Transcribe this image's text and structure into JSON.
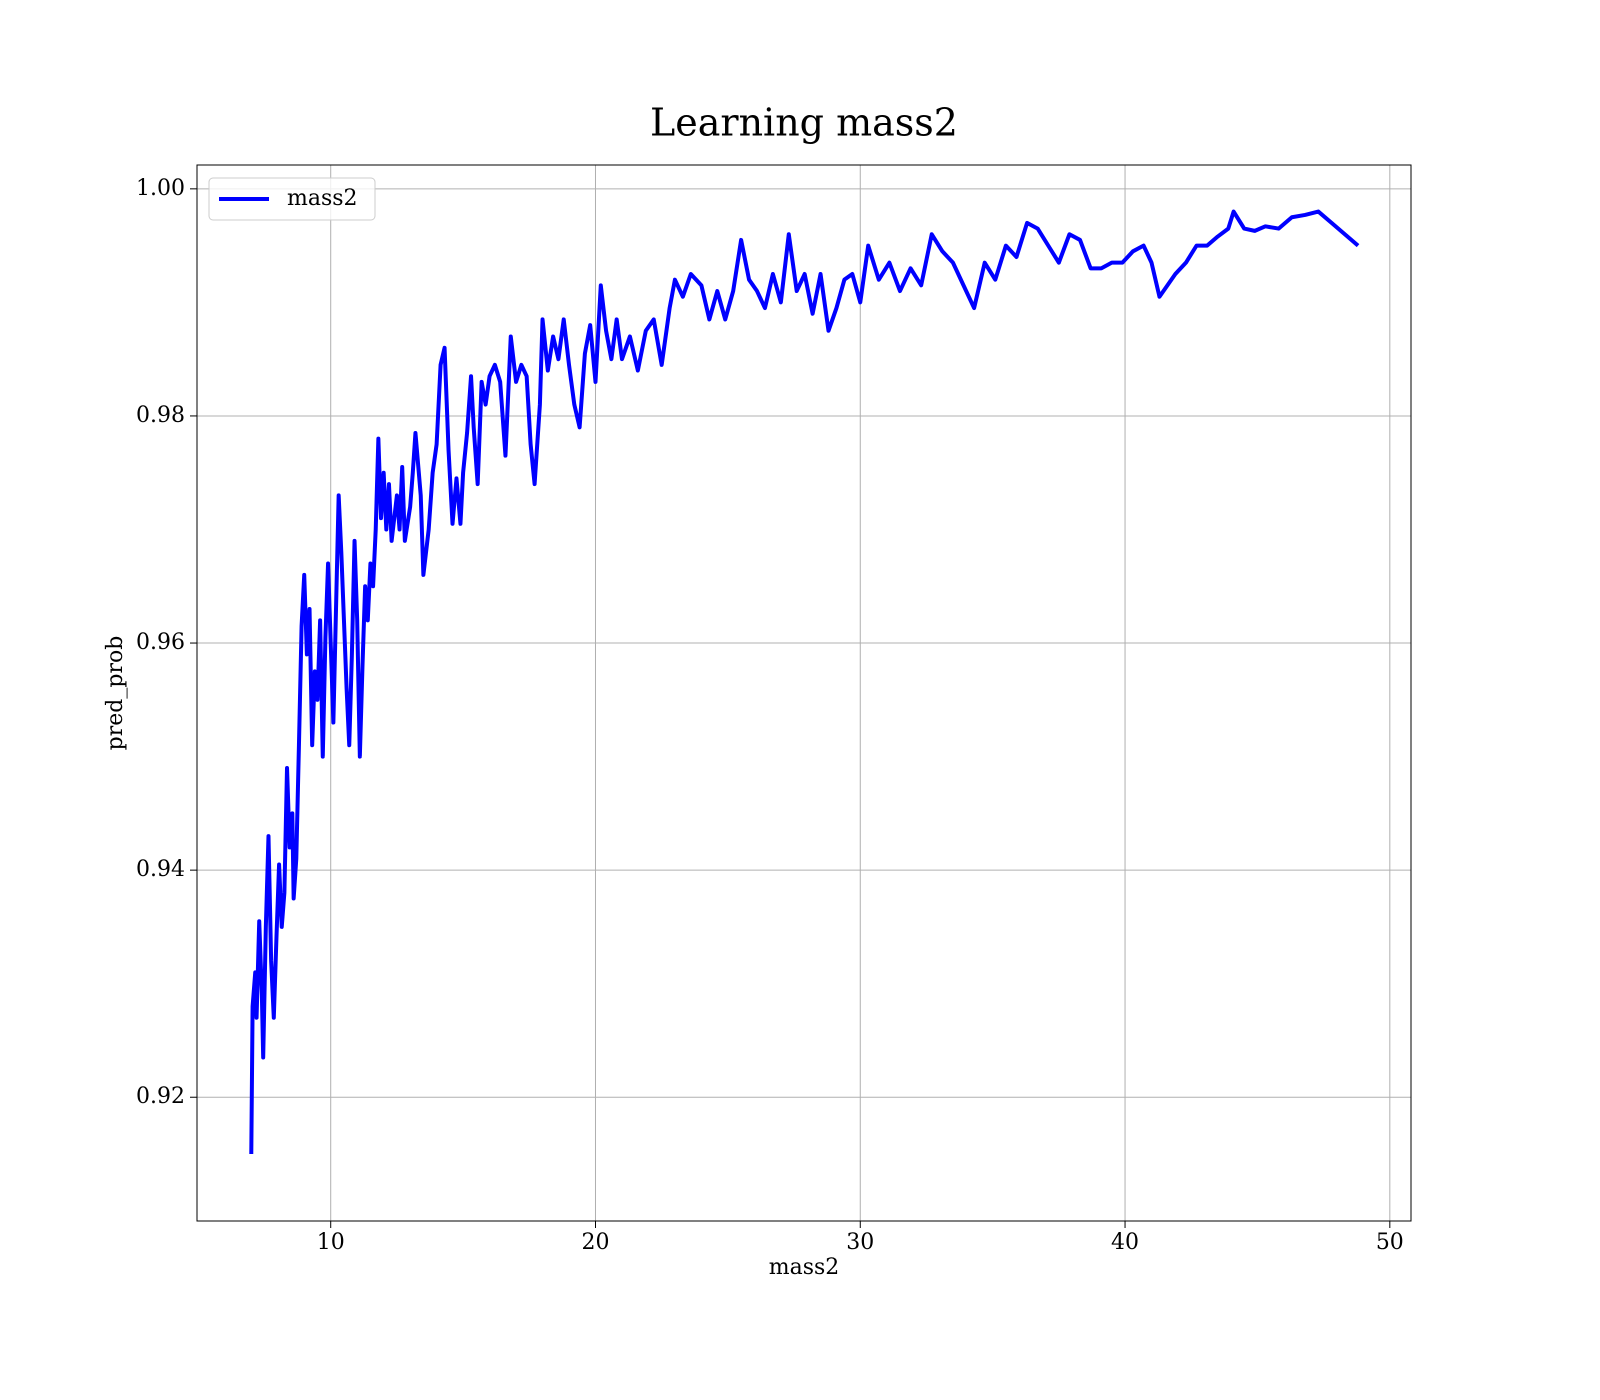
{
  "chart_data": {
    "type": "line",
    "title": "Learning mass2",
    "xlabel": "mass2",
    "ylabel": "pred_prob",
    "legend": "upper left",
    "grid": true,
    "xlim": [
      4.95,
      50.8
    ],
    "ylim": [
      0.9091,
      1.0021
    ],
    "xticks": [
      10,
      20,
      30,
      40,
      50
    ],
    "yticks": [
      0.92,
      0.94,
      0.96,
      0.98,
      {
        "value": 1,
        "label": "1.00"
      }
    ],
    "x": [
      7.0,
      7.05,
      7.15,
      7.2,
      7.3,
      7.4,
      7.45,
      7.55,
      7.65,
      7.75,
      7.85,
      7.95,
      8.05,
      8.15,
      8.25,
      8.35,
      8.45,
      8.55,
      8.6,
      8.7,
      8.8,
      8.9,
      9.0,
      9.1,
      9.2,
      9.3,
      9.4,
      9.5,
      9.6,
      9.7,
      9.8,
      9.9,
      10.0,
      10.1,
      10.2,
      10.3,
      10.4,
      10.5,
      10.6,
      10.7,
      10.8,
      10.9,
      11.0,
      11.1,
      11.2,
      11.3,
      11.4,
      11.5,
      11.6,
      11.7,
      11.8,
      11.9,
      12.0,
      12.1,
      12.2,
      12.3,
      12.5,
      12.6,
      12.7,
      12.8,
      13.0,
      13.1,
      13.2,
      13.4,
      13.5,
      13.7,
      13.85,
      14.0,
      14.15,
      14.3,
      14.45,
      14.6,
      14.75,
      14.9,
      15.0,
      15.15,
      15.3,
      15.4,
      15.55,
      15.7,
      15.85,
      16.0,
      16.2,
      16.4,
      16.6,
      16.8,
      17.0,
      17.2,
      17.4,
      17.55,
      17.7,
      17.9,
      18.0,
      18.2,
      18.4,
      18.6,
      18.8,
      19.0,
      19.2,
      19.4,
      19.6,
      19.8,
      20.0,
      20.2,
      20.4,
      20.6,
      20.8,
      21.0,
      21.3,
      21.6,
      21.9,
      22.2,
      22.5,
      22.8,
      23.0,
      23.3,
      23.6,
      24.0,
      24.3,
      24.6,
      24.9,
      25.2,
      25.5,
      25.8,
      26.1,
      26.4,
      26.7,
      27.0,
      27.3,
      27.6,
      27.9,
      28.2,
      28.5,
      28.8,
      29.1,
      29.4,
      29.7,
      30.0,
      30.3,
      30.7,
      31.1,
      31.5,
      31.9,
      32.3,
      32.7,
      33.1,
      33.5,
      33.9,
      34.3,
      34.7,
      35.1,
      35.5,
      35.9,
      36.3,
      36.7,
      37.1,
      37.5,
      37.9,
      38.3,
      38.7,
      39.1,
      39.5,
      39.9,
      40.3,
      40.7,
      41.0,
      41.3,
      41.6,
      41.9,
      42.3,
      42.7,
      43.1,
      43.5,
      43.9,
      44.1,
      44.5,
      44.9,
      45.3,
      45.8,
      46.3,
      46.8,
      47.3,
      47.8,
      48.3,
      48.8
    ],
    "series": [
      {
        "name": "mass2",
        "color": "#0000ff",
        "values": [
          0.915,
          0.928,
          0.931,
          0.927,
          0.9355,
          0.929,
          0.9235,
          0.935,
          0.943,
          0.932,
          0.927,
          0.934,
          0.9405,
          0.935,
          0.938,
          0.949,
          0.942,
          0.945,
          0.9375,
          0.941,
          0.951,
          0.9615,
          0.966,
          0.959,
          0.963,
          0.951,
          0.9575,
          0.955,
          0.962,
          0.95,
          0.9605,
          0.967,
          0.96,
          0.953,
          0.963,
          0.973,
          0.968,
          0.962,
          0.956,
          0.951,
          0.959,
          0.969,
          0.962,
          0.95,
          0.958,
          0.965,
          0.962,
          0.967,
          0.965,
          0.97,
          0.978,
          0.971,
          0.975,
          0.97,
          0.974,
          0.969,
          0.973,
          0.97,
          0.9755,
          0.969,
          0.972,
          0.975,
          0.9785,
          0.973,
          0.966,
          0.97,
          0.975,
          0.9775,
          0.9845,
          0.986,
          0.977,
          0.9705,
          0.9745,
          0.9705,
          0.975,
          0.9785,
          0.9835,
          0.979,
          0.974,
          0.983,
          0.981,
          0.9835,
          0.9845,
          0.983,
          0.9765,
          0.987,
          0.983,
          0.9845,
          0.9835,
          0.9775,
          0.974,
          0.981,
          0.9885,
          0.984,
          0.987,
          0.985,
          0.9885,
          0.9845,
          0.981,
          0.979,
          0.9855,
          0.988,
          0.983,
          0.9915,
          0.9875,
          0.985,
          0.9885,
          0.985,
          0.987,
          0.984,
          0.9875,
          0.9885,
          0.9845,
          0.9895,
          0.992,
          0.9905,
          0.9925,
          0.9915,
          0.9885,
          0.991,
          0.9885,
          0.991,
          0.9955,
          0.992,
          0.991,
          0.9895,
          0.9925,
          0.99,
          0.996,
          0.991,
          0.9925,
          0.989,
          0.9925,
          0.9875,
          0.9895,
          0.992,
          0.9925,
          0.99,
          0.995,
          0.992,
          0.9935,
          0.991,
          0.993,
          0.9915,
          0.996,
          0.9945,
          0.9935,
          0.9915,
          0.9895,
          0.9935,
          0.992,
          0.995,
          0.994,
          0.997,
          0.9965,
          0.995,
          0.9935,
          0.996,
          0.9955,
          0.993,
          0.993,
          0.9935,
          0.9935,
          0.9945,
          0.995,
          0.9935,
          0.9905,
          0.9915,
          0.9925,
          0.9935,
          0.995,
          0.995,
          0.9958,
          0.9965,
          0.998,
          0.9965,
          0.9963,
          0.9967,
          0.9965,
          0.9975,
          0.9977,
          0.998,
          0.997,
          0.996,
          0.995
        ]
      }
    ]
  }
}
